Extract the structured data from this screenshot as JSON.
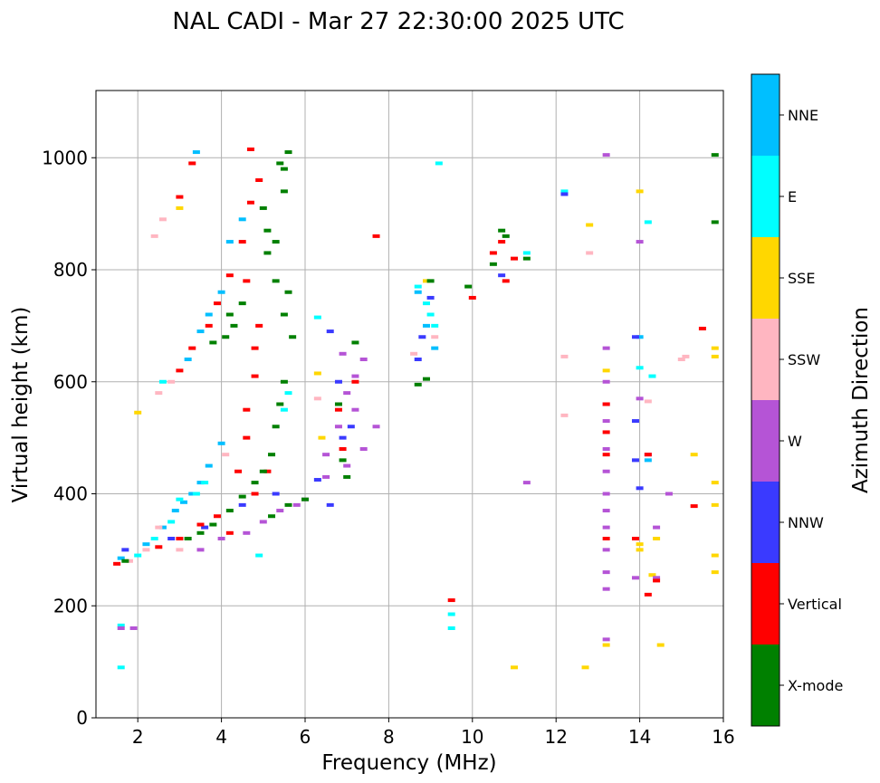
{
  "chart_data": {
    "type": "scatter",
    "title": "NAL CADI - Mar 27 22:30:00 2025 UTC",
    "xlabel": "Frequency (MHz)",
    "ylabel": "Virtual height (km)",
    "xlim": [
      1,
      16
    ],
    "ylim": [
      0,
      1120
    ],
    "xticks": [
      "2",
      "4",
      "6",
      "8",
      "10",
      "12",
      "14",
      "16"
    ],
    "yticks": [
      "0",
      "200",
      "400",
      "600",
      "800",
      "1000"
    ],
    "grid": true,
    "colorbar": {
      "label": "Azimuth Direction",
      "categories": [
        {
          "name": "X-mode",
          "color": "#008000"
        },
        {
          "name": "Vertical",
          "color": "#ff0000"
        },
        {
          "name": "NNW",
          "color": "#3a3aff"
        },
        {
          "name": "W",
          "color": "#b554d6"
        },
        {
          "name": "SSW",
          "color": "#ffb6c1"
        },
        {
          "name": "SSE",
          "color": "#ffd700"
        },
        {
          "name": "E",
          "color": "#00ffff"
        },
        {
          "name": "NNE",
          "color": "#00bfff"
        }
      ]
    },
    "series": [
      {
        "name": "NNE",
        "points": [
          [
            1.6,
            285
          ],
          [
            2.2,
            310
          ],
          [
            2.6,
            340
          ],
          [
            2.9,
            370
          ],
          [
            3.1,
            385
          ],
          [
            3.3,
            400
          ],
          [
            3.5,
            420
          ],
          [
            3.7,
            450
          ],
          [
            4.0,
            490
          ],
          [
            3.2,
            640
          ],
          [
            3.5,
            690
          ],
          [
            3.7,
            720
          ],
          [
            4.0,
            760
          ],
          [
            4.2,
            850
          ],
          [
            4.5,
            890
          ],
          [
            3.4,
            1010
          ],
          [
            8.7,
            760
          ],
          [
            8.9,
            700
          ],
          [
            9.1,
            660
          ],
          [
            14.0,
            680
          ],
          [
            14.2,
            460
          ]
        ]
      },
      {
        "name": "E",
        "points": [
          [
            1.6,
            90
          ],
          [
            1.6,
            165
          ],
          [
            2.0,
            290
          ],
          [
            2.4,
            320
          ],
          [
            2.8,
            350
          ],
          [
            3.0,
            390
          ],
          [
            3.4,
            400
          ],
          [
            3.6,
            420
          ],
          [
            2.6,
            600
          ],
          [
            5.6,
            580
          ],
          [
            5.5,
            550
          ],
          [
            4.9,
            290
          ],
          [
            6.3,
            715
          ],
          [
            8.7,
            770
          ],
          [
            8.9,
            740
          ],
          [
            9.0,
            720
          ],
          [
            9.1,
            700
          ],
          [
            9.2,
            990
          ],
          [
            9.5,
            160
          ],
          [
            9.5,
            185
          ],
          [
            11.3,
            830
          ],
          [
            12.2,
            940
          ],
          [
            14.2,
            885
          ],
          [
            14.0,
            625
          ],
          [
            14.3,
            610
          ]
        ]
      },
      {
        "name": "SSE",
        "points": [
          [
            2.0,
            545
          ],
          [
            3.0,
            910
          ],
          [
            6.3,
            615
          ],
          [
            6.4,
            500
          ],
          [
            8.9,
            780
          ],
          [
            11.0,
            90
          ],
          [
            12.7,
            90
          ],
          [
            12.8,
            880
          ],
          [
            13.2,
            130
          ],
          [
            13.2,
            620
          ],
          [
            14.0,
            940
          ],
          [
            14.0,
            310
          ],
          [
            14.0,
            300
          ],
          [
            14.3,
            255
          ],
          [
            14.4,
            320
          ],
          [
            14.5,
            130
          ],
          [
            15.3,
            470
          ],
          [
            15.8,
            290
          ],
          [
            15.8,
            380
          ],
          [
            15.8,
            420
          ],
          [
            15.8,
            260
          ],
          [
            15.8,
            645
          ],
          [
            15.8,
            660
          ]
        ]
      },
      {
        "name": "SSW",
        "points": [
          [
            1.8,
            280
          ],
          [
            2.2,
            300
          ],
          [
            2.5,
            340
          ],
          [
            2.5,
            580
          ],
          [
            2.8,
            600
          ],
          [
            2.6,
            890
          ],
          [
            2.4,
            860
          ],
          [
            3.0,
            300
          ],
          [
            4.1,
            470
          ],
          [
            6.3,
            570
          ],
          [
            8.6,
            650
          ],
          [
            9.1,
            680
          ],
          [
            12.2,
            540
          ],
          [
            12.2,
            645
          ],
          [
            12.8,
            830
          ],
          [
            15.1,
            645
          ],
          [
            14.2,
            565
          ],
          [
            15.0,
            640
          ]
        ]
      },
      {
        "name": "W",
        "points": [
          [
            1.6,
            160
          ],
          [
            1.9,
            160
          ],
          [
            3.5,
            300
          ],
          [
            4.0,
            320
          ],
          [
            4.6,
            330
          ],
          [
            5.0,
            350
          ],
          [
            5.4,
            370
          ],
          [
            5.8,
            380
          ],
          [
            6.0,
            390
          ],
          [
            6.5,
            430
          ],
          [
            7.0,
            450
          ],
          [
            7.4,
            480
          ],
          [
            7.7,
            520
          ],
          [
            6.5,
            470
          ],
          [
            6.8,
            520
          ],
          [
            7.2,
            550
          ],
          [
            7.0,
            580
          ],
          [
            6.9,
            650
          ],
          [
            7.4,
            640
          ],
          [
            7.2,
            610
          ],
          [
            11.3,
            420
          ],
          [
            13.2,
            230
          ],
          [
            13.2,
            260
          ],
          [
            13.2,
            300
          ],
          [
            13.2,
            340
          ],
          [
            13.2,
            370
          ],
          [
            13.2,
            400
          ],
          [
            13.2,
            440
          ],
          [
            13.2,
            480
          ],
          [
            13.2,
            530
          ],
          [
            13.2,
            560
          ],
          [
            13.2,
            600
          ],
          [
            13.2,
            660
          ],
          [
            13.2,
            1005
          ],
          [
            13.2,
            140
          ],
          [
            13.9,
            250
          ],
          [
            14.0,
            570
          ],
          [
            14.0,
            850
          ],
          [
            14.2,
            470
          ],
          [
            14.4,
            250
          ],
          [
            14.4,
            340
          ],
          [
            14.7,
            400
          ]
        ]
      },
      {
        "name": "NNW",
        "points": [
          [
            1.7,
            300
          ],
          [
            2.8,
            320
          ],
          [
            3.6,
            340
          ],
          [
            4.5,
            380
          ],
          [
            5.3,
            400
          ],
          [
            6.3,
            425
          ],
          [
            6.9,
            500
          ],
          [
            7.1,
            520
          ],
          [
            6.6,
            380
          ],
          [
            6.8,
            600
          ],
          [
            6.6,
            690
          ],
          [
            8.7,
            640
          ],
          [
            8.8,
            680
          ],
          [
            9.0,
            750
          ],
          [
            13.9,
            460
          ],
          [
            13.9,
            530
          ],
          [
            13.9,
            680
          ],
          [
            14.0,
            410
          ],
          [
            12.2,
            935
          ],
          [
            10.7,
            790
          ]
        ]
      },
      {
        "name": "Vertical",
        "points": [
          [
            1.5,
            275
          ],
          [
            2.5,
            305
          ],
          [
            3.0,
            320
          ],
          [
            3.5,
            345
          ],
          [
            3.9,
            360
          ],
          [
            4.2,
            330
          ],
          [
            4.8,
            400
          ],
          [
            5.1,
            440
          ],
          [
            4.4,
            440
          ],
          [
            4.6,
            500
          ],
          [
            4.6,
            550
          ],
          [
            4.8,
            610
          ],
          [
            4.8,
            660
          ],
          [
            4.9,
            700
          ],
          [
            4.6,
            780
          ],
          [
            3.0,
            620
          ],
          [
            3.3,
            660
          ],
          [
            3.7,
            700
          ],
          [
            3.9,
            740
          ],
          [
            4.2,
            790
          ],
          [
            4.5,
            850
          ],
          [
            4.7,
            920
          ],
          [
            4.9,
            960
          ],
          [
            4.7,
            1015
          ],
          [
            3.3,
            990
          ],
          [
            3.0,
            930
          ],
          [
            6.8,
            550
          ],
          [
            7.2,
            600
          ],
          [
            6.9,
            480
          ],
          [
            7.7,
            860
          ],
          [
            9.5,
            210
          ],
          [
            10.0,
            750
          ],
          [
            10.8,
            780
          ],
          [
            10.7,
            850
          ],
          [
            10.5,
            830
          ],
          [
            11.0,
            820
          ],
          [
            13.2,
            470
          ],
          [
            13.2,
            510
          ],
          [
            13.2,
            560
          ],
          [
            13.2,
            320
          ],
          [
            13.9,
            320
          ],
          [
            14.2,
            220
          ],
          [
            14.2,
            470
          ],
          [
            14.4,
            245
          ],
          [
            15.3,
            378
          ],
          [
            15.5,
            695
          ]
        ]
      },
      {
        "name": "X-mode",
        "points": [
          [
            1.7,
            280
          ],
          [
            3.2,
            320
          ],
          [
            3.5,
            330
          ],
          [
            3.8,
            345
          ],
          [
            4.2,
            370
          ],
          [
            4.5,
            395
          ],
          [
            4.8,
            420
          ],
          [
            5.0,
            440
          ],
          [
            5.2,
            470
          ],
          [
            5.3,
            520
          ],
          [
            5.4,
            560
          ],
          [
            5.5,
            600
          ],
          [
            5.2,
            360
          ],
          [
            5.6,
            380
          ],
          [
            6.0,
            390
          ],
          [
            5.0,
            910
          ],
          [
            5.1,
            870
          ],
          [
            5.3,
            850
          ],
          [
            5.1,
            830
          ],
          [
            5.3,
            780
          ],
          [
            5.5,
            720
          ],
          [
            5.6,
            760
          ],
          [
            5.5,
            940
          ],
          [
            5.5,
            980
          ],
          [
            5.6,
            1010
          ],
          [
            5.4,
            990
          ],
          [
            4.1,
            680
          ],
          [
            4.3,
            700
          ],
          [
            4.5,
            740
          ],
          [
            4.2,
            720
          ],
          [
            3.8,
            670
          ],
          [
            5.7,
            680
          ],
          [
            7.2,
            670
          ],
          [
            6.8,
            560
          ],
          [
            6.9,
            460
          ],
          [
            7.0,
            430
          ],
          [
            8.7,
            595
          ],
          [
            8.9,
            605
          ],
          [
            9.0,
            780
          ],
          [
            9.9,
            770
          ],
          [
            10.7,
            870
          ],
          [
            10.8,
            860
          ],
          [
            10.5,
            810
          ],
          [
            11.3,
            820
          ],
          [
            15.8,
            885
          ],
          [
            15.8,
            1005
          ]
        ]
      }
    ]
  }
}
